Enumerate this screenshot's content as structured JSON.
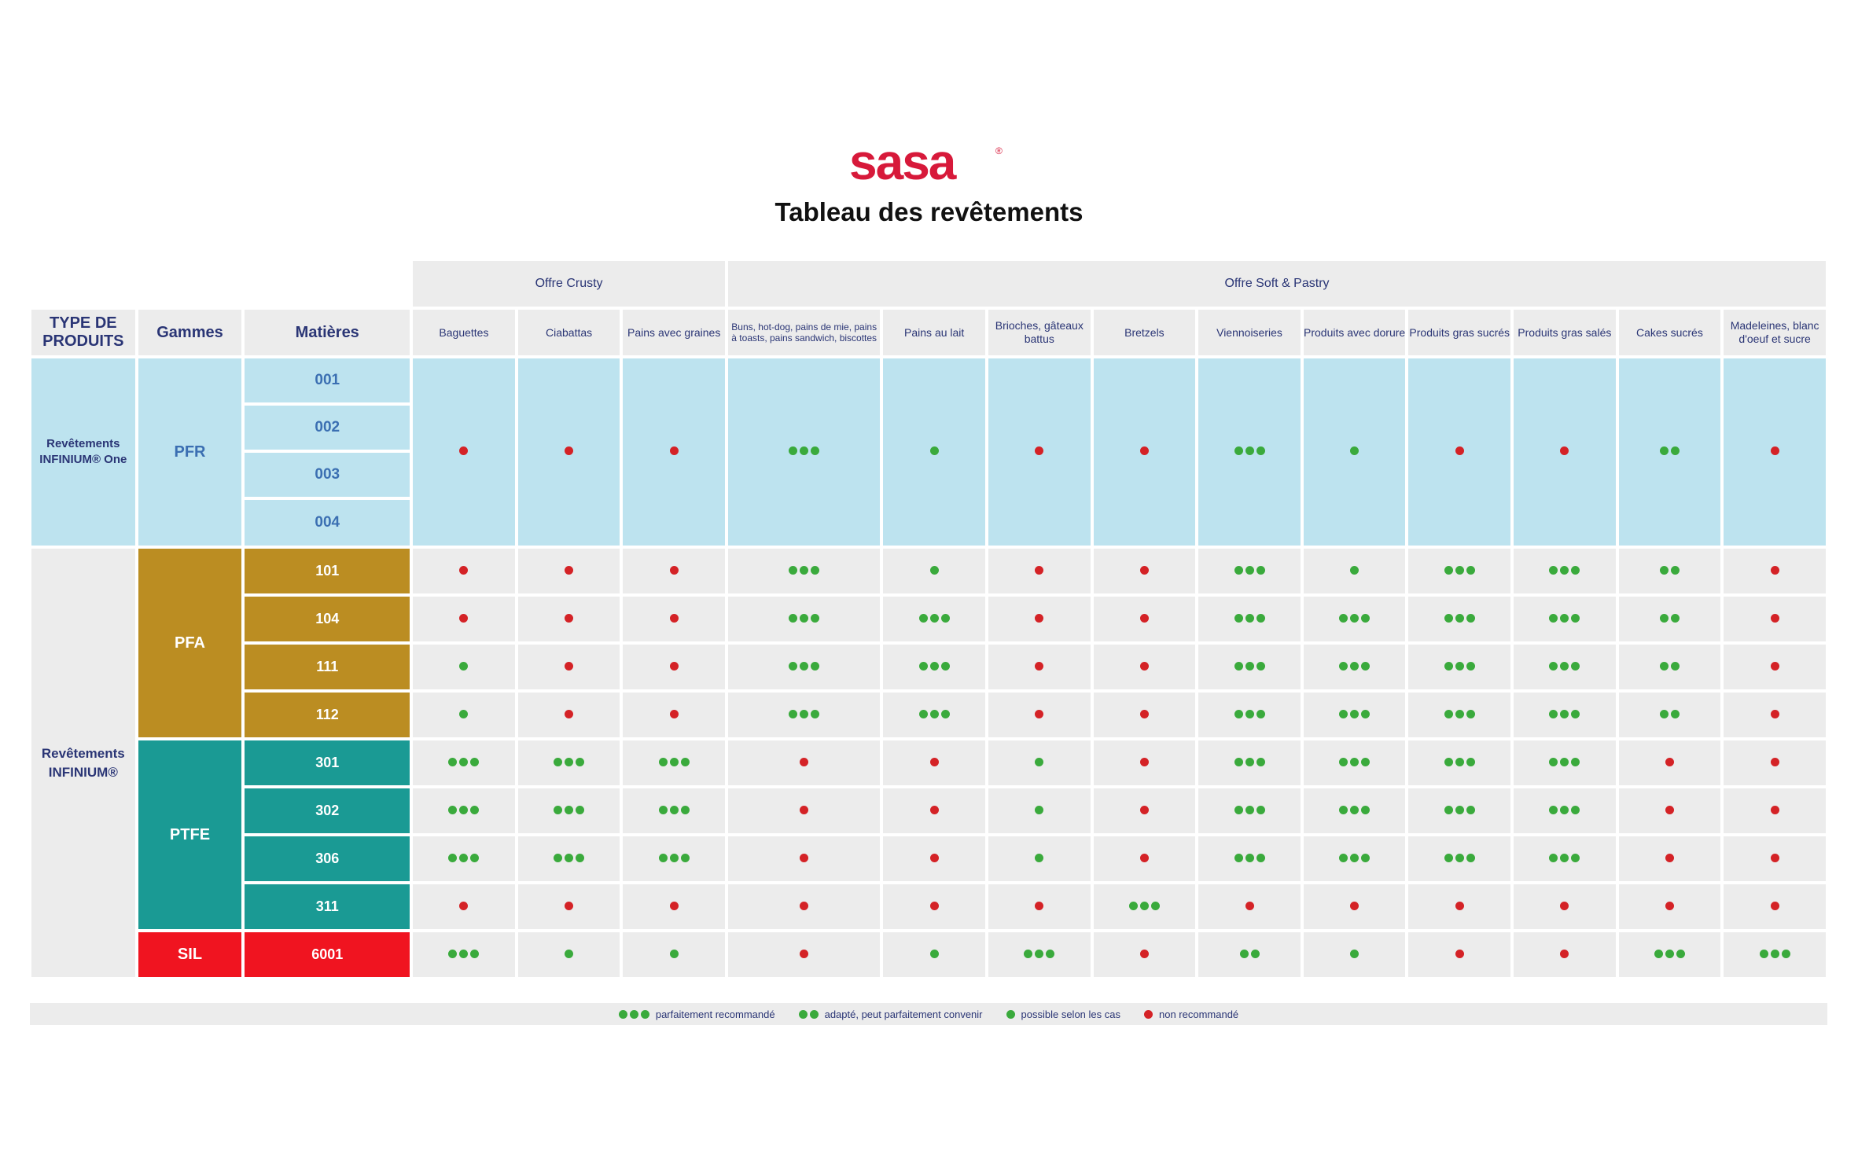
{
  "brand": {
    "logo_text": "sasa",
    "logo_color": "#d7193a",
    "registered_mark": "®"
  },
  "title": "Tableau des revêtements",
  "colors": {
    "green_dot": "#3aaa3c",
    "red_dot": "#d42226",
    "pfr": "#bde3ef",
    "pfa": "#bb8d22",
    "ptfe": "#1a9a94",
    "sil": "#f01420",
    "header_bg": "#ececec",
    "header_text": "#2a3575"
  },
  "table": {
    "headers": {
      "type": "TYPE DE PRODUITS",
      "gammes": "Gammes",
      "matieres": "Matières"
    },
    "groups": [
      {
        "label": "Offre Crusty",
        "span": 3
      },
      {
        "label": "Offre Soft & Pastry",
        "span": 10
      }
    ],
    "columns": [
      "Baguettes",
      "Ciabattas",
      "Pains avec graines",
      "Buns, hot-dog, pains de mie, pains à toasts, pains sandwich, biscottes",
      "Pains au lait",
      "Brioches, gâteaux battus",
      "Bretzels",
      "Viennoiseries",
      "Produits avec dorure",
      "Produits gras sucrés",
      "Produits gras salés",
      "Cakes sucrés",
      "Madeleines, blanc d'oeuf et sucre"
    ],
    "pfr": {
      "type_label": "Revêtements INFINIUM® One",
      "gamme": "PFR",
      "matieres": [
        "001",
        "002",
        "003",
        "004"
      ],
      "ratings": [
        0,
        0,
        0,
        3,
        1,
        0,
        0,
        3,
        1,
        0,
        0,
        2,
        0
      ]
    },
    "infinium_label": "Revêtements INFINIUM®",
    "gammes": [
      {
        "name": "PFA",
        "style": "pfa",
        "rows": [
          {
            "code": "101",
            "ratings": [
              0,
              0,
              0,
              3,
              1,
              0,
              0,
              3,
              1,
              3,
              3,
              2,
              0
            ]
          },
          {
            "code": "104",
            "ratings": [
              0,
              0,
              0,
              3,
              3,
              0,
              0,
              3,
              3,
              3,
              3,
              2,
              0
            ]
          },
          {
            "code": "111",
            "ratings": [
              1,
              0,
              0,
              3,
              3,
              0,
              0,
              3,
              3,
              3,
              3,
              2,
              0
            ]
          },
          {
            "code": "112",
            "ratings": [
              1,
              0,
              0,
              3,
              3,
              0,
              0,
              3,
              3,
              3,
              3,
              2,
              0
            ]
          }
        ]
      },
      {
        "name": "PTFE",
        "style": "ptfe",
        "rows": [
          {
            "code": "301",
            "ratings": [
              3,
              3,
              3,
              0,
              0,
              1,
              0,
              3,
              3,
              3,
              3,
              0,
              0
            ]
          },
          {
            "code": "302",
            "ratings": [
              3,
              3,
              3,
              0,
              0,
              1,
              0,
              3,
              3,
              3,
              3,
              0,
              0
            ]
          },
          {
            "code": "306",
            "ratings": [
              3,
              3,
              3,
              0,
              0,
              1,
              0,
              3,
              3,
              3,
              3,
              0,
              0
            ]
          },
          {
            "code": "311",
            "ratings": [
              0,
              0,
              0,
              0,
              0,
              0,
              3,
              0,
              0,
              0,
              0,
              0,
              0
            ]
          }
        ]
      },
      {
        "name": "SIL",
        "style": "sil",
        "rows": [
          {
            "code": "6001",
            "ratings": [
              3,
              1,
              1,
              0,
              1,
              3,
              0,
              2,
              1,
              0,
              0,
              3,
              3
            ]
          }
        ]
      }
    ]
  },
  "legend": [
    {
      "rating": 3,
      "label": "parfaitement recommandé"
    },
    {
      "rating": 2,
      "label": "adapté, peut parfaitement convenir"
    },
    {
      "rating": 1,
      "label": "possible selon les cas"
    },
    {
      "rating": 0,
      "label": "non recommandé"
    }
  ]
}
